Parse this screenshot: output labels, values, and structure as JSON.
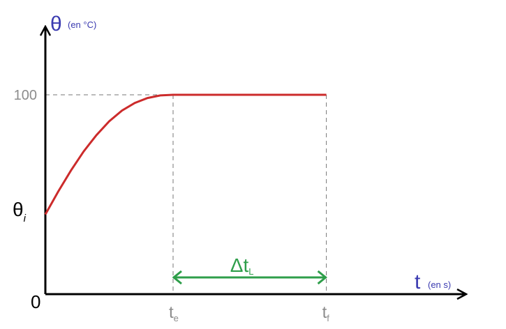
{
  "chart_data": {
    "type": "line",
    "y_axis": {
      "symbol": "θ",
      "unit_label": "(en °C)"
    },
    "x_axis": {
      "symbol": "t",
      "unit_label": "(en s)"
    },
    "origin_label": "0",
    "y_ticks": [
      {
        "label": "100",
        "value": 100
      },
      {
        "main": "θ",
        "sub": "i",
        "value": 40
      }
    ],
    "x_ticks": [
      {
        "main": "t",
        "sub": "e",
        "value": 1
      },
      {
        "main": "t",
        "sub": "f",
        "value": 2.2
      }
    ],
    "ylim": [
      0,
      150
    ],
    "xlim": [
      0,
      3.3
    ],
    "series": [
      {
        "x": [
          0,
          0.1,
          0.2,
          0.3,
          0.4,
          0.5,
          0.6,
          0.7,
          0.8,
          0.9,
          1.0,
          2.2
        ],
        "y": [
          40,
          51.4,
          62,
          71.6,
          79.8,
          86.7,
          92.1,
          95.9,
          98.4,
          99.7,
          100,
          100
        ]
      }
    ],
    "interval_annotation": {
      "main": "Δt",
      "sub": "L",
      "from": 1,
      "to": 2.2
    },
    "colors": {
      "curve": "#cc2b2b",
      "interval": "#2e9e4a",
      "axis_titles": "#3a3ab0",
      "tick_labels": "#8c8c8c",
      "axes": "#000000"
    }
  }
}
